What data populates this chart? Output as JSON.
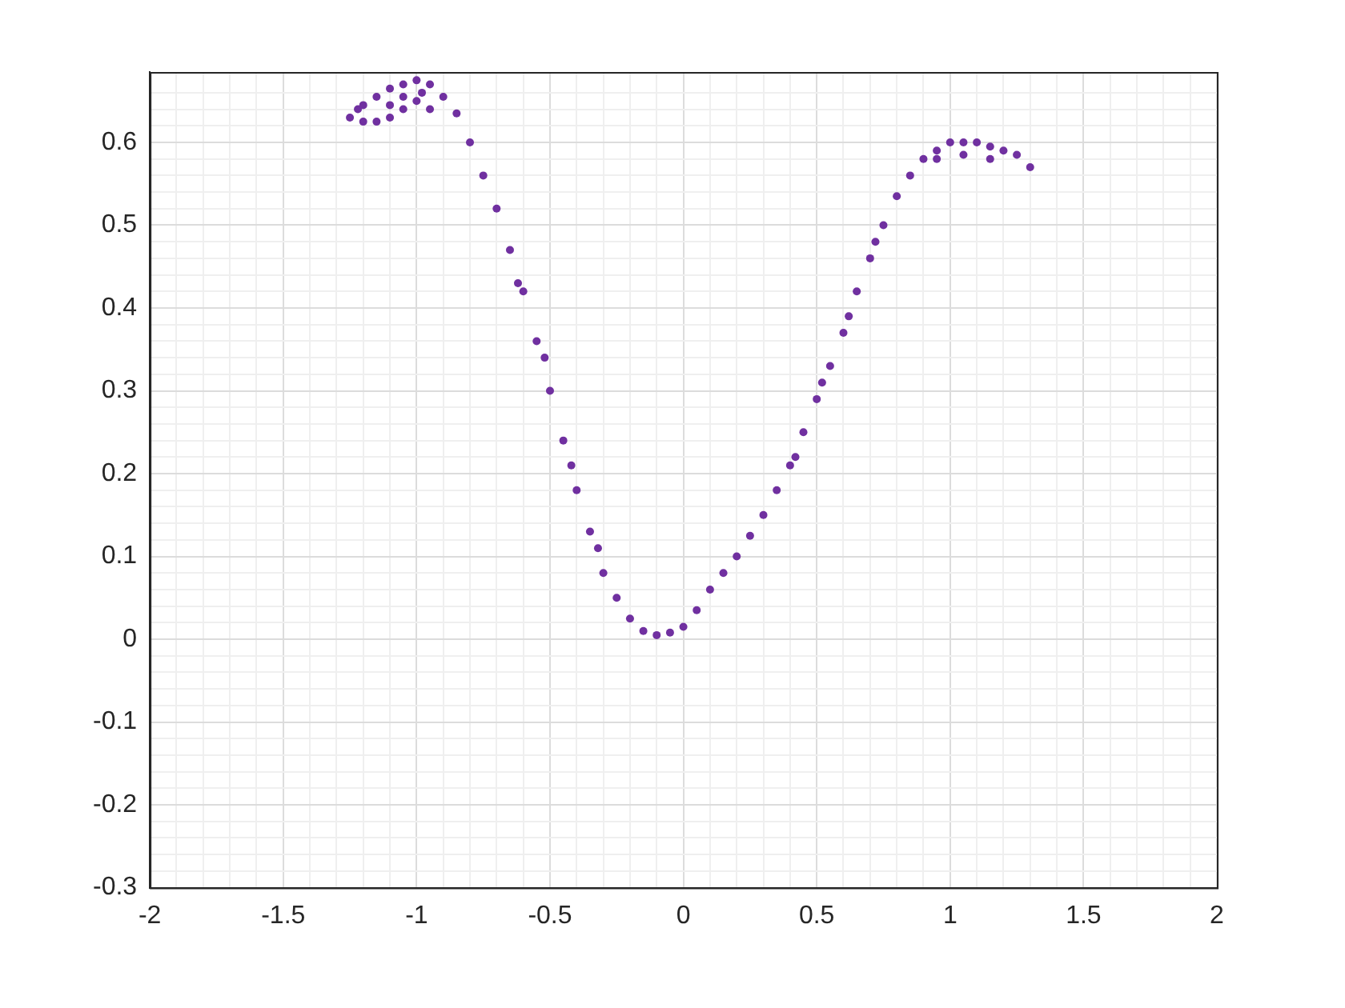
{
  "chart_data": {
    "type": "scatter",
    "marker": "circle",
    "grid": true,
    "xlim": [
      -2,
      2
    ],
    "ylim": [
      -0.3,
      0.685
    ],
    "xticks": [
      -2,
      {
        "value": -1.9,
        "label": null
      },
      {
        "value": -1.8,
        "label": null
      },
      {
        "value": -1.7,
        "label": null
      },
      {
        "value": -1.6,
        "label": null
      },
      -1.5,
      {
        "value": -1.4,
        "label": null
      },
      {
        "value": -1.3,
        "label": null
      },
      {
        "value": -1.2,
        "label": null
      },
      {
        "value": -1.1,
        "label": null
      },
      -1,
      {
        "value": -0.9,
        "label": null
      },
      {
        "value": -0.8,
        "label": null
      },
      {
        "value": -0.7,
        "label": null
      },
      {
        "value": -0.6,
        "label": null
      },
      -0.5,
      {
        "value": -0.4,
        "label": null
      },
      {
        "value": -0.3,
        "label": null
      },
      {
        "value": -0.2,
        "label": null
      },
      {
        "value": -0.1,
        "label": null
      },
      0,
      {
        "value": 0.1,
        "label": null
      },
      {
        "value": 0.2,
        "label": null
      },
      {
        "value": 0.3,
        "label": null
      },
      {
        "value": 0.4,
        "label": null
      },
      0.5,
      {
        "value": 0.6,
        "label": null
      },
      {
        "value": 0.7,
        "label": null
      },
      {
        "value": 0.8,
        "label": null
      },
      {
        "value": 0.9,
        "label": null
      },
      1,
      {
        "value": 1.1,
        "label": null
      },
      {
        "value": 1.2,
        "label": null
      },
      {
        "value": 1.3,
        "label": null
      },
      {
        "value": 1.4,
        "label": null
      },
      1.5,
      {
        "value": 1.6,
        "label": null
      },
      {
        "value": 1.7,
        "label": null
      },
      {
        "value": 1.8,
        "label": null
      },
      {
        "value": 1.9,
        "label": null
      },
      2
    ],
    "yticks": [
      -0.3,
      {
        "value": -0.28,
        "label": null
      },
      {
        "value": -0.26,
        "label": null
      },
      {
        "value": -0.24,
        "label": null
      },
      {
        "value": -0.22,
        "label": null
      },
      -0.2,
      {
        "value": -0.18,
        "label": null
      },
      {
        "value": -0.16,
        "label": null
      },
      {
        "value": -0.14,
        "label": null
      },
      {
        "value": -0.12,
        "label": null
      },
      -0.1,
      {
        "value": -0.08,
        "label": null
      },
      {
        "value": -0.06,
        "label": null
      },
      {
        "value": -0.04,
        "label": null
      },
      {
        "value": -0.02,
        "label": null
      },
      0,
      {
        "value": 0.02,
        "label": null
      },
      {
        "value": 0.04,
        "label": null
      },
      {
        "value": 0.06,
        "label": null
      },
      {
        "value": 0.08,
        "label": null
      },
      0.1,
      {
        "value": 0.12,
        "label": null
      },
      {
        "value": 0.14,
        "label": null
      },
      {
        "value": 0.16,
        "label": null
      },
      {
        "value": 0.18,
        "label": null
      },
      0.2,
      {
        "value": 0.22,
        "label": null
      },
      {
        "value": 0.24,
        "label": null
      },
      {
        "value": 0.26,
        "label": null
      },
      {
        "value": 0.28,
        "label": null
      },
      0.3,
      {
        "value": 0.32,
        "label": null
      },
      {
        "value": 0.34,
        "label": null
      },
      {
        "value": 0.36,
        "label": null
      },
      {
        "value": 0.38,
        "label": null
      },
      0.4,
      {
        "value": 0.42,
        "label": null
      },
      {
        "value": 0.44,
        "label": null
      },
      {
        "value": 0.46,
        "label": null
      },
      {
        "value": 0.48,
        "label": null
      },
      0.5,
      {
        "value": 0.52,
        "label": null
      },
      {
        "value": 0.54,
        "label": null
      },
      {
        "value": 0.56,
        "label": null
      },
      {
        "value": 0.58,
        "label": null
      },
      0.6,
      {
        "value": 0.62,
        "label": null
      },
      {
        "value": 0.64,
        "label": null
      },
      {
        "value": 0.66,
        "label": null
      }
    ],
    "series": [
      {
        "color": "#7030a0",
        "x": [
          -1.25,
          -1.22,
          -1.2,
          -1.15,
          -1.1,
          -1.05,
          -1.0,
          -0.95,
          -0.9,
          -0.85,
          -1.2,
          -1.15,
          -1.1,
          -1.05,
          -1.0,
          -0.95,
          -1.1,
          -1.05,
          -0.98,
          -0.8,
          -0.75,
          -0.7,
          -0.65,
          -0.6,
          -0.55,
          -0.5,
          -0.45,
          -0.4,
          -0.35,
          -0.3,
          -0.25,
          -0.2,
          -0.15,
          -0.1,
          -0.05,
          0,
          0.05,
          0.1,
          0.15,
          0.2,
          0.25,
          0.3,
          0.35,
          0.4,
          0.45,
          0.5,
          0.55,
          0.6,
          0.65,
          0.7,
          0.75,
          0.8,
          0.85,
          0.9,
          0.95,
          1.0,
          1.05,
          1.1,
          1.15,
          1.2,
          1.25,
          1.3,
          -0.62,
          -0.52,
          -0.42,
          -0.32,
          0.42,
          0.52,
          0.62,
          0.72,
          0.95,
          1.05,
          1.15
        ],
        "values": [
          0.63,
          0.64,
          0.645,
          0.655,
          0.665,
          0.67,
          0.675,
          0.67,
          0.655,
          0.635,
          0.625,
          0.625,
          0.63,
          0.64,
          0.65,
          0.64,
          0.645,
          0.655,
          0.66,
          0.6,
          0.56,
          0.52,
          0.47,
          0.42,
          0.36,
          0.3,
          0.24,
          0.18,
          0.13,
          0.08,
          0.05,
          0.025,
          0.01,
          0.005,
          0.008,
          0.015,
          0.035,
          0.06,
          0.08,
          0.1,
          0.125,
          0.15,
          0.18,
          0.21,
          0.25,
          0.29,
          0.33,
          0.37,
          0.42,
          0.46,
          0.5,
          0.535,
          0.56,
          0.58,
          0.59,
          0.6,
          0.6,
          0.6,
          0.595,
          0.59,
          0.585,
          0.57,
          0.43,
          0.34,
          0.21,
          0.11,
          0.22,
          0.31,
          0.39,
          0.48,
          0.58,
          0.585,
          0.58
        ]
      }
    ]
  }
}
